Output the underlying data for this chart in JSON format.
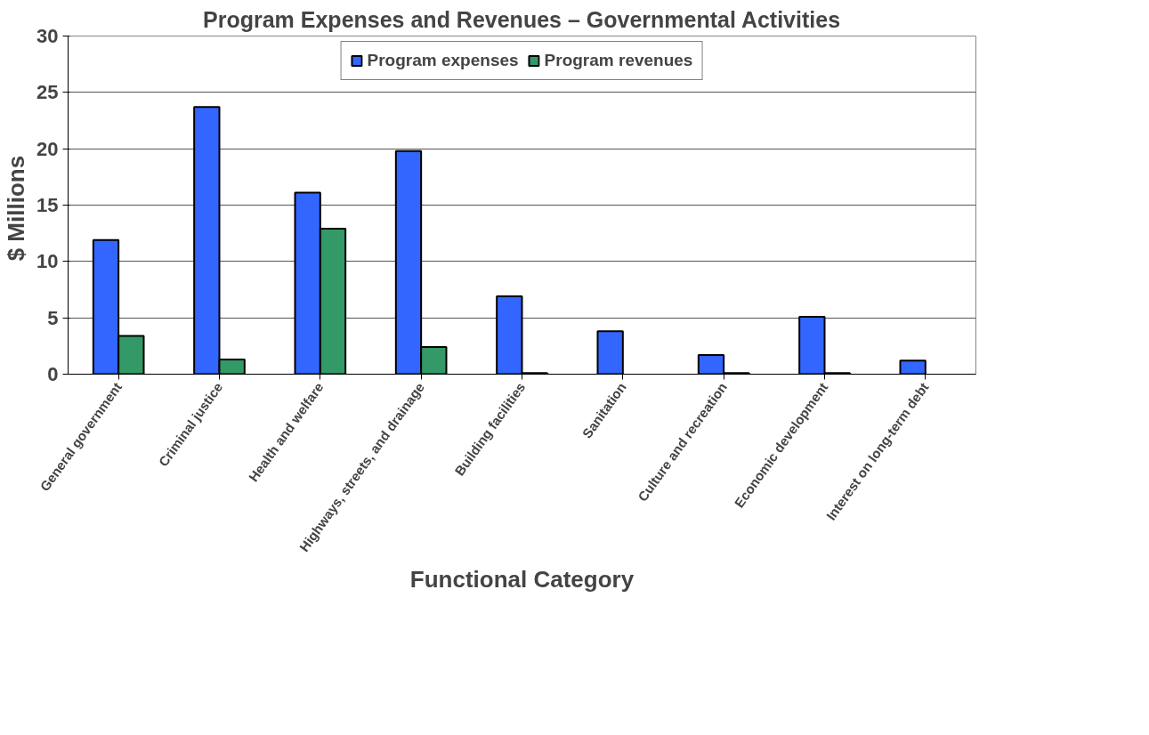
{
  "chart_data": {
    "type": "bar",
    "title": "Program Expenses and Revenues – Governmental Activities",
    "xlabel": "Functional Category",
    "ylabel": "$  Millions",
    "categories": [
      "General government",
      "Criminal justice",
      "Health and welfare",
      "Highways, streets, and drainage",
      "Building facilities",
      "Sanitation",
      "Culture and recreation",
      "Economic development",
      "Interest on long-term debt"
    ],
    "series": [
      {
        "name": "Program expenses",
        "color": "#3366ff",
        "values": [
          11.9,
          23.7,
          16.1,
          19.8,
          6.9,
          3.8,
          1.7,
          5.1,
          1.2
        ]
      },
      {
        "name": "Program revenues",
        "color": "#339966",
        "values": [
          3.4,
          1.3,
          12.9,
          2.4,
          0.1,
          null,
          0.1,
          0.1,
          null
        ]
      }
    ],
    "ylim": [
      0,
      30
    ],
    "yticks": [
      0,
      5,
      10,
      15,
      20,
      25,
      30
    ],
    "grid": "y",
    "legend": "top"
  }
}
